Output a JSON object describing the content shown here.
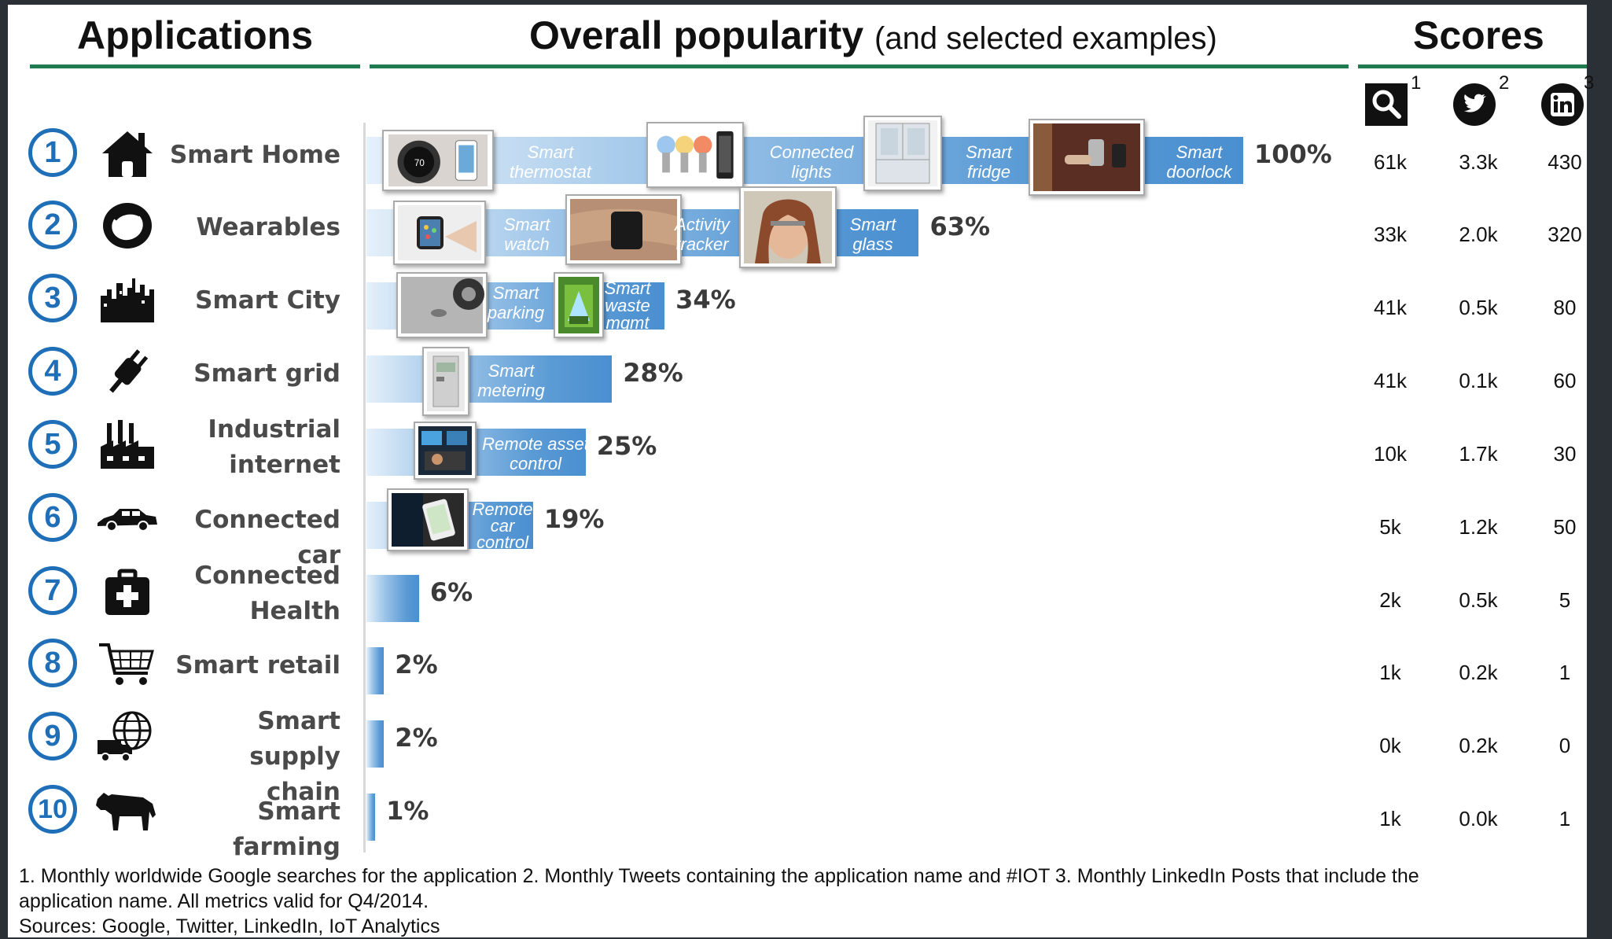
{
  "headers": {
    "applications": "Applications",
    "popularity": "Overall popularity",
    "popularity_sub": "(and selected examples)",
    "scores": "Scores"
  },
  "score_columns": [
    {
      "icon": "search-icon",
      "sup": "1"
    },
    {
      "icon": "twitter-icon",
      "sup": "2"
    },
    {
      "icon": "linkedin-icon",
      "sup": "3"
    }
  ],
  "chart_data": {
    "type": "bar",
    "categories": [
      "Smart Home",
      "Wearables",
      "Smart City",
      "Smart grid",
      "Industrial internet",
      "Connected car",
      "Connected Health",
      "Smart retail",
      "Smart supply chain",
      "Smart farming"
    ],
    "values": [
      100,
      63,
      34,
      28,
      25,
      19,
      6,
      2,
      2,
      1
    ],
    "value_labels": [
      "100%",
      "63%",
      "34%",
      "28%",
      "25%",
      "19%",
      "6%",
      "2%",
      "2%",
      "1%"
    ],
    "orientation": "horizontal",
    "xlim": [
      0,
      100
    ]
  },
  "rows": [
    {
      "num": "1",
      "label": [
        "Smart Home"
      ],
      "icon": "house-icon",
      "pct": "100%",
      "examples": [
        "Smart thermostat",
        "Connected lights",
        "Smart fridge",
        "Smart doorlock"
      ],
      "scores": [
        "61k",
        "3.3k",
        "430"
      ]
    },
    {
      "num": "2",
      "label": [
        "Wearables"
      ],
      "icon": "ring-icon",
      "pct": "63%",
      "examples": [
        "Smart watch",
        "Activity tracker",
        "Smart glass"
      ],
      "scores": [
        "33k",
        "2.0k",
        "320"
      ]
    },
    {
      "num": "3",
      "label": [
        "Smart City"
      ],
      "icon": "city-icon",
      "pct": "34%",
      "examples": [
        "Smart parking",
        "Smart waste mgmt"
      ],
      "scores": [
        "41k",
        "0.5k",
        "80"
      ]
    },
    {
      "num": "4",
      "label": [
        "Smart grid"
      ],
      "icon": "plug-icon",
      "pct": "28%",
      "examples": [
        "Smart metering"
      ],
      "scores": [
        "41k",
        "0.1k",
        "60"
      ]
    },
    {
      "num": "5",
      "label": [
        "Industrial",
        "internet"
      ],
      "icon": "factory-icon",
      "pct": "25%",
      "examples": [
        "Remote asset control"
      ],
      "scores": [
        "10k",
        "1.7k",
        "30"
      ]
    },
    {
      "num": "6",
      "label": [
        "Connected car"
      ],
      "icon": "car-icon",
      "pct": "19%",
      "examples": [
        "Remote car control"
      ],
      "scores": [
        "5k",
        "1.2k",
        "50"
      ]
    },
    {
      "num": "7",
      "label": [
        "Connected",
        "Health"
      ],
      "icon": "medkit-icon",
      "pct": "6%",
      "examples": [],
      "scores": [
        "2k",
        "0.5k",
        "5"
      ]
    },
    {
      "num": "8",
      "label": [
        "Smart retail"
      ],
      "icon": "cart-icon",
      "pct": "2%",
      "examples": [],
      "scores": [
        "1k",
        "0.2k",
        "1"
      ]
    },
    {
      "num": "9",
      "label": [
        "Smart supply",
        "chain"
      ],
      "icon": "globe-truck-icon",
      "pct": "2%",
      "examples": [],
      "scores": [
        "0k",
        "0.2k",
        "0"
      ]
    },
    {
      "num": "10",
      "label": [
        "Smart farming"
      ],
      "icon": "cow-icon",
      "pct": "1%",
      "examples": [],
      "scores": [
        "1k",
        "0.0k",
        "1"
      ]
    }
  ],
  "footnotes": {
    "line1": "1. Monthly worldwide Google searches for the application  2. Monthly Tweets containing the application name and #IOT  3. Monthly LinkedIn Posts that include the",
    "line2": "application name.  All metrics valid for Q4/2014.",
    "line3": "Sources: Google, Twitter, LinkedIn, IoT Analytics"
  },
  "colors": {
    "accent_green": "#1f7a4f",
    "circle_blue": "#1f6fb8",
    "bar_blue": "#5b9bd5",
    "bar_light": "#e5f0fa",
    "frame": "#2b3036"
  }
}
